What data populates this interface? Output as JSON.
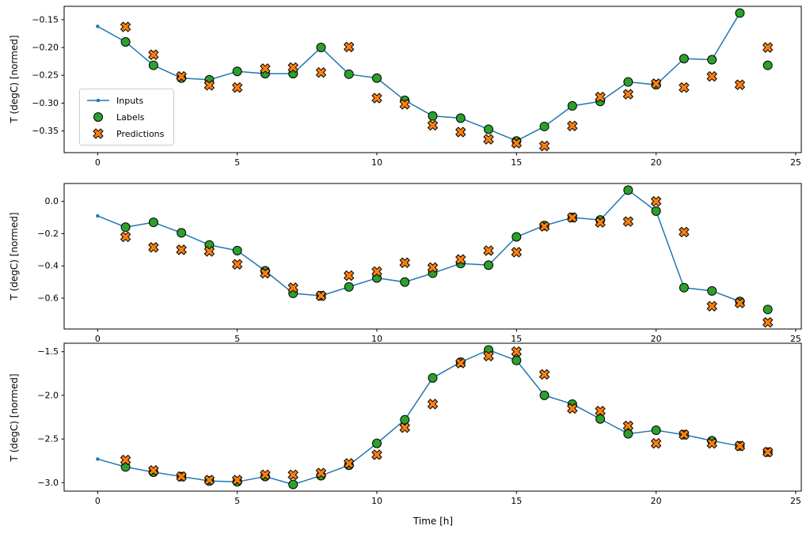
{
  "figure": {
    "xlabel": "Time [h]",
    "ylabel": "T (degC) [normed]",
    "background": "#ffffff",
    "colors": {
      "inputs": "#1f77b4",
      "labels": "#2ca02c",
      "predictions": "#ff7f0e",
      "edge": "#000000",
      "legend_border": "#cccccc"
    },
    "legend": {
      "location": "center left of top subplot",
      "items": [
        {
          "label": "Inputs"
        },
        {
          "label": "Labels"
        },
        {
          "label": "Predictions"
        }
      ]
    }
  },
  "chart_data": [
    {
      "type": "line",
      "title": "",
      "xlabel": "",
      "ylabel": "T (degC) [normed]",
      "xlim": [
        -1.2,
        25.2
      ],
      "ylim": [
        -0.389,
        -0.126
      ],
      "xticks": [
        0,
        5,
        10,
        15,
        20,
        25
      ],
      "yticks": [
        -0.15,
        -0.2,
        -0.25,
        -0.3,
        -0.35
      ],
      "ytick_decimals": 2,
      "grid": false,
      "legend": true,
      "series": [
        {
          "name": "Inputs",
          "style": "line-dot",
          "x": [
            0,
            1,
            2,
            3,
            4,
            5,
            6,
            7,
            8,
            9,
            10,
            11,
            12,
            13,
            14,
            15,
            16,
            17,
            18,
            19,
            20,
            21,
            22,
            23
          ],
          "y": [
            -0.162,
            -0.19,
            -0.232,
            -0.255,
            -0.258,
            -0.243,
            -0.247,
            -0.247,
            -0.2,
            -0.248,
            -0.255,
            -0.295,
            -0.323,
            -0.327,
            -0.347,
            -0.368,
            -0.342,
            -0.305,
            -0.297,
            -0.262,
            -0.267,
            -0.22,
            -0.222,
            -0.138
          ]
        },
        {
          "name": "Labels",
          "style": "scatter-circle",
          "x": [
            1,
            2,
            3,
            4,
            5,
            6,
            7,
            8,
            9,
            10,
            11,
            12,
            13,
            14,
            15,
            16,
            17,
            18,
            19,
            20,
            21,
            22,
            23,
            24
          ],
          "y": [
            -0.19,
            -0.232,
            -0.255,
            -0.258,
            -0.243,
            -0.247,
            -0.247,
            -0.2,
            -0.248,
            -0.255,
            -0.295,
            -0.323,
            -0.327,
            -0.347,
            -0.368,
            -0.342,
            -0.305,
            -0.297,
            -0.262,
            -0.267,
            -0.22,
            -0.222,
            -0.138,
            -0.232
          ]
        },
        {
          "name": "Predictions",
          "style": "scatter-x",
          "x": [
            1,
            2,
            3,
            4,
            5,
            6,
            7,
            8,
            9,
            10,
            11,
            12,
            13,
            14,
            15,
            16,
            17,
            18,
            19,
            20,
            21,
            22,
            23,
            24
          ],
          "y": [
            -0.163,
            -0.213,
            -0.252,
            -0.268,
            -0.272,
            -0.238,
            -0.236,
            -0.245,
            -0.199,
            -0.291,
            -0.302,
            -0.34,
            -0.352,
            -0.365,
            -0.372,
            -0.377,
            -0.341,
            -0.289,
            -0.284,
            -0.265,
            -0.272,
            -0.252,
            -0.267,
            -0.2
          ]
        }
      ]
    },
    {
      "type": "line",
      "title": "",
      "xlabel": "",
      "ylabel": "T (degC) [normed]",
      "xlim": [
        -1.2,
        25.2
      ],
      "ylim": [
        -0.791,
        0.111
      ],
      "xticks": [
        0,
        5,
        10,
        15,
        20,
        25
      ],
      "yticks": [
        0.0,
        -0.2,
        -0.4,
        -0.6
      ],
      "ytick_decimals": 1,
      "grid": false,
      "legend": false,
      "series": [
        {
          "name": "Inputs",
          "style": "line-dot",
          "x": [
            0,
            1,
            2,
            3,
            4,
            5,
            6,
            7,
            8,
            9,
            10,
            11,
            12,
            13,
            14,
            15,
            16,
            17,
            18,
            19,
            20,
            21,
            22,
            23
          ],
          "y": [
            -0.09,
            -0.16,
            -0.13,
            -0.195,
            -0.27,
            -0.305,
            -0.43,
            -0.57,
            -0.585,
            -0.53,
            -0.475,
            -0.5,
            -0.445,
            -0.385,
            -0.395,
            -0.22,
            -0.15,
            -0.1,
            -0.115,
            0.07,
            -0.06,
            -0.535,
            -0.555,
            -0.62
          ]
        },
        {
          "name": "Labels",
          "style": "scatter-circle",
          "x": [
            1,
            2,
            3,
            4,
            5,
            6,
            7,
            8,
            9,
            10,
            11,
            12,
            13,
            14,
            15,
            16,
            17,
            18,
            19,
            20,
            21,
            22,
            23,
            24
          ],
          "y": [
            -0.16,
            -0.13,
            -0.195,
            -0.27,
            -0.305,
            -0.43,
            -0.57,
            -0.585,
            -0.53,
            -0.475,
            -0.5,
            -0.445,
            -0.385,
            -0.395,
            -0.22,
            -0.15,
            -0.1,
            -0.115,
            0.07,
            -0.06,
            -0.535,
            -0.555,
            -0.62,
            -0.67
          ]
        },
        {
          "name": "Predictions",
          "style": "scatter-x",
          "x": [
            1,
            2,
            3,
            4,
            5,
            6,
            7,
            8,
            9,
            10,
            11,
            12,
            13,
            14,
            15,
            16,
            17,
            18,
            19,
            20,
            21,
            22,
            23,
            24
          ],
          "y": [
            -0.22,
            -0.285,
            -0.3,
            -0.31,
            -0.39,
            -0.445,
            -0.535,
            -0.585,
            -0.46,
            -0.435,
            -0.38,
            -0.41,
            -0.36,
            -0.305,
            -0.315,
            -0.155,
            -0.1,
            -0.13,
            -0.125,
            0.0,
            -0.19,
            -0.65,
            -0.63,
            -0.75
          ]
        }
      ]
    },
    {
      "type": "line",
      "title": "",
      "xlabel": "Time [h]",
      "ylabel": "T (degC) [normed]",
      "xlim": [
        -1.2,
        25.2
      ],
      "ylim": [
        -3.097,
        -1.403
      ],
      "xticks": [
        0,
        5,
        10,
        15,
        20,
        25
      ],
      "yticks": [
        -1.5,
        -2.0,
        -2.5,
        -3.0
      ],
      "ytick_decimals": 1,
      "grid": false,
      "legend": false,
      "series": [
        {
          "name": "Inputs",
          "style": "line-dot",
          "x": [
            0,
            1,
            2,
            3,
            4,
            5,
            6,
            7,
            8,
            9,
            10,
            11,
            12,
            13,
            14,
            15,
            16,
            17,
            18,
            19,
            20,
            21,
            22,
            23
          ],
          "y": [
            -2.73,
            -2.82,
            -2.88,
            -2.93,
            -2.98,
            -2.99,
            -2.93,
            -3.02,
            -2.92,
            -2.8,
            -2.55,
            -2.28,
            -1.8,
            -1.62,
            -1.48,
            -1.6,
            -2.0,
            -2.1,
            -2.27,
            -2.44,
            -2.4,
            -2.45,
            -2.52,
            -2.58
          ]
        },
        {
          "name": "Labels",
          "style": "scatter-circle",
          "x": [
            1,
            2,
            3,
            4,
            5,
            6,
            7,
            8,
            9,
            10,
            11,
            12,
            13,
            14,
            15,
            16,
            17,
            18,
            19,
            20,
            21,
            22,
            23,
            24
          ],
          "y": [
            -2.82,
            -2.88,
            -2.93,
            -2.98,
            -2.99,
            -2.93,
            -3.02,
            -2.92,
            -2.8,
            -2.55,
            -2.28,
            -1.8,
            -1.62,
            -1.48,
            -1.6,
            -2.0,
            -2.1,
            -2.27,
            -2.44,
            -2.4,
            -2.45,
            -2.52,
            -2.58,
            -2.65
          ]
        },
        {
          "name": "Predictions",
          "style": "scatter-x",
          "x": [
            1,
            2,
            3,
            4,
            5,
            6,
            7,
            8,
            9,
            10,
            11,
            12,
            13,
            14,
            15,
            16,
            17,
            18,
            19,
            20,
            21,
            22,
            23,
            24
          ],
          "y": [
            -2.74,
            -2.86,
            -2.93,
            -2.97,
            -2.97,
            -2.91,
            -2.91,
            -2.89,
            -2.78,
            -2.68,
            -2.37,
            -2.1,
            -1.63,
            -1.55,
            -1.5,
            -1.76,
            -2.15,
            -2.18,
            -2.35,
            -2.55,
            -2.45,
            -2.55,
            -2.58,
            -2.65
          ]
        }
      ]
    }
  ]
}
